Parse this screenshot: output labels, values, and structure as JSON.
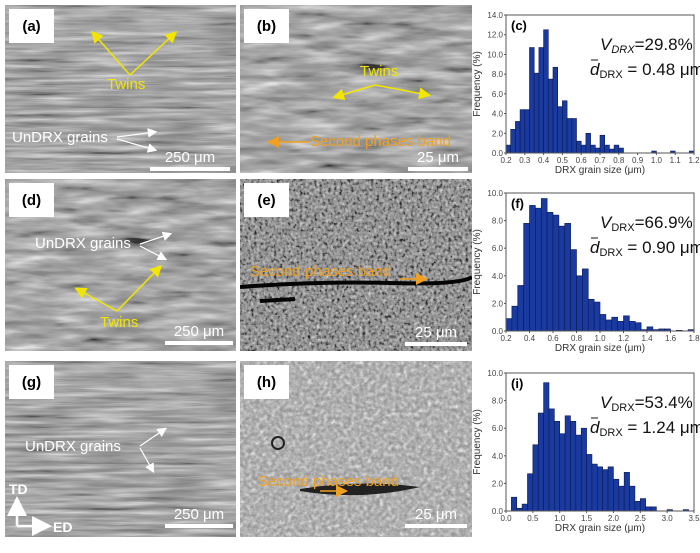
{
  "panels": {
    "a": {
      "tag": "(a)",
      "labels": {
        "twins": "Twins",
        "undrx": "UnDRX grains"
      },
      "scale": "250 μm"
    },
    "b": {
      "tag": "(b)",
      "labels": {
        "twins": "Twins",
        "band": "Second phases band"
      },
      "scale": "25 μm"
    },
    "d": {
      "tag": "(d)",
      "labels": {
        "twins": "Twins",
        "undrx": "UnDRX grains"
      },
      "scale": "250 μm"
    },
    "e": {
      "tag": "(e)",
      "labels": {
        "band": "Second phases band"
      },
      "scale": "25 μm"
    },
    "g": {
      "tag": "(g)",
      "labels": {
        "undrx": "UnDRX grains"
      },
      "scale": "250 μm",
      "axes": {
        "td": "TD",
        "ed": "ED"
      }
    },
    "h": {
      "tag": "(h)",
      "labels": {
        "band": "Second phases band"
      },
      "scale": "25 μm"
    }
  },
  "colors": {
    "bar": "#1a3aa0",
    "bar_edge": "#0a1a50",
    "twins": "#f2e600",
    "band": "#f0a020"
  },
  "chart_data": [
    {
      "id": "c",
      "tag": "(c)",
      "type": "bar",
      "title": "",
      "xlabel": "DRX grain size (μm)",
      "ylabel": "Frequency (%)",
      "xlim": [
        0.2,
        1.2
      ],
      "ylim": [
        0,
        14
      ],
      "xticks": [
        "0.2",
        "0.3",
        "0.4",
        "0.5",
        "0.6",
        "0.7",
        "0.8",
        "0.9",
        "1.0",
        "1.1",
        "1.2"
      ],
      "yticks": [
        "0.0",
        "2.0",
        "4.0",
        "6.0",
        "8.0",
        "10.0",
        "12.0",
        "14.0"
      ],
      "bin_width": 0.025,
      "x": [
        0.2125,
        0.2375,
        0.2625,
        0.2875,
        0.3125,
        0.3375,
        0.3625,
        0.3875,
        0.4125,
        0.4375,
        0.4625,
        0.4875,
        0.5125,
        0.5375,
        0.5625,
        0.5875,
        0.6125,
        0.6375,
        0.6625,
        0.6875,
        0.7125,
        0.7375,
        0.7625,
        0.7875,
        0.8125,
        0.8375,
        0.8625,
        0.8875,
        0.9125,
        0.9375,
        0.9625,
        0.9875,
        1.0125,
        1.0375,
        1.0625,
        1.0875,
        1.1125,
        1.1375,
        1.1625,
        1.1875
      ],
      "values": [
        0.8,
        2.4,
        3.2,
        4.4,
        4.4,
        10.7,
        8.1,
        10.7,
        12.5,
        7.5,
        8.7,
        4.7,
        5.3,
        3.5,
        3.5,
        1.2,
        0.8,
        2.0,
        0.8,
        0.5,
        1.8,
        0.8,
        0.4,
        0.8,
        0.5,
        0,
        0,
        0,
        0,
        0,
        0,
        0.2,
        0,
        0,
        0,
        0.2,
        0,
        0,
        0,
        0.2
      ],
      "annotation": {
        "v_label": "V",
        "v_sub": "DRX",
        "v_value": "=29.8%",
        "d_label": "d",
        "d_sub": "DRX",
        "d_value": " = 0.48 μm"
      }
    },
    {
      "id": "f",
      "tag": "(f)",
      "type": "bar",
      "title": "",
      "xlabel": "DRX grain size (μm)",
      "ylabel": "Frequency (%)",
      "xlim": [
        0.2,
        1.8
      ],
      "ylim": [
        0,
        10
      ],
      "xticks": [
        "0.2",
        "0.4",
        "0.6",
        "0.8",
        "1.0",
        "1.2",
        "1.4",
        "1.6",
        "1.8"
      ],
      "yticks": [
        "0.0",
        "2.0",
        "4.0",
        "6.0",
        "8.0",
        "10.0"
      ],
      "bin_width": 0.05,
      "x": [
        0.225,
        0.275,
        0.325,
        0.375,
        0.425,
        0.475,
        0.525,
        0.575,
        0.625,
        0.675,
        0.725,
        0.775,
        0.825,
        0.875,
        0.925,
        0.975,
        1.025,
        1.075,
        1.125,
        1.175,
        1.225,
        1.275,
        1.325,
        1.375,
        1.425,
        1.475,
        1.525,
        1.575,
        1.625,
        1.675,
        1.725,
        1.775
      ],
      "values": [
        0.9,
        1.8,
        3.3,
        7.8,
        9.1,
        8.9,
        9.6,
        8.6,
        8.4,
        7.6,
        7.8,
        5.9,
        4.0,
        4.5,
        2.3,
        2.1,
        1.2,
        0.8,
        1.0,
        0.7,
        1.1,
        0.7,
        0.6,
        0.1,
        0.3,
        0.1,
        0.15,
        0.15,
        0,
        0.05,
        0,
        0.1
      ],
      "annotation": {
        "v_label": "V",
        "v_sub": "DRX",
        "v_value": "=66.9%",
        "d_label": "d",
        "d_sub": "DRX",
        "d_value": " = 0.90 μm"
      }
    },
    {
      "id": "i",
      "tag": "(i)",
      "type": "bar",
      "title": "",
      "xlabel": "DRX grain size (μm)",
      "ylabel": "Frequency (%)",
      "xlim": [
        0.0,
        3.5
      ],
      "ylim": [
        0,
        10
      ],
      "xticks": [
        "0.0",
        "0.5",
        "1.0",
        "1.5",
        "2.0",
        "2.5",
        "3.0",
        "3.5"
      ],
      "yticks": [
        "0.0",
        "2.0",
        "4.0",
        "6.0",
        "8.0",
        "10.0"
      ],
      "bin_width": 0.1,
      "x": [
        0.15,
        0.25,
        0.35,
        0.45,
        0.55,
        0.65,
        0.75,
        0.85,
        0.95,
        1.05,
        1.15,
        1.25,
        1.35,
        1.45,
        1.55,
        1.65,
        1.75,
        1.85,
        1.95,
        2.05,
        2.15,
        2.25,
        2.35,
        2.45,
        2.55,
        2.65,
        2.75,
        2.85,
        2.95,
        3.05,
        3.15,
        3.25,
        3.35
      ],
      "values": [
        1.0,
        0.2,
        0.5,
        2.7,
        4.8,
        7.1,
        9.3,
        7.4,
        6.5,
        5.6,
        6.9,
        6.5,
        5.5,
        6.0,
        4.1,
        3.4,
        3.2,
        3.0,
        3.2,
        2.3,
        1.8,
        2.8,
        1.8,
        0.7,
        0.9,
        0.3,
        0.3,
        0,
        0,
        0.1,
        0,
        0,
        0.1
      ],
      "annotation": {
        "v_label": "V",
        "v_sub": "DRX",
        "v_value": "=53.4%",
        "d_label": "d",
        "d_sub": "DRX",
        "d_value": " = 1.24 μm"
      }
    }
  ]
}
